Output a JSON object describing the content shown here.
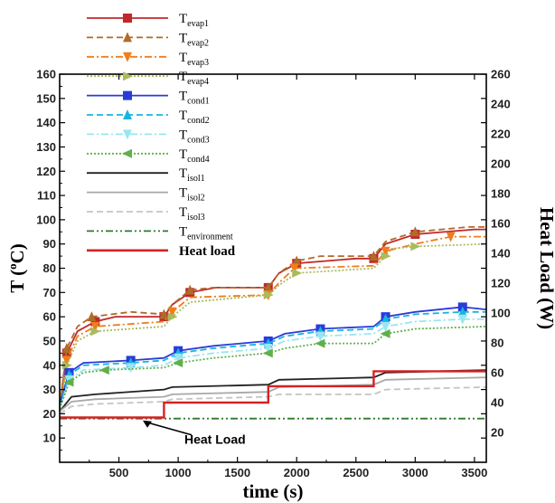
{
  "chart_data": {
    "type": "line",
    "xlabel": "time (s)",
    "ylabel": "T (°C)",
    "ylabel_sup": "o",
    "y2label": "Heat Load (W)",
    "xlim": [
      0,
      3600
    ],
    "ylim": [
      0,
      160
    ],
    "y2lim": [
      0,
      260
    ],
    "xticks": [
      500,
      1000,
      1500,
      2000,
      2500,
      3000,
      3500
    ],
    "yticks": [
      10,
      20,
      30,
      40,
      50,
      60,
      70,
      80,
      90,
      100,
      110,
      120,
      130,
      140,
      150,
      160
    ],
    "y2ticks": [
      20,
      40,
      60,
      80,
      100,
      120,
      140,
      160,
      180,
      200,
      220,
      240,
      260
    ],
    "annotation": {
      "text": "Heat Load",
      "x": 900,
      "y": 18
    },
    "series": [
      {
        "name": "T",
        "sub": "evap1",
        "color": "#c0282a",
        "dash": "",
        "marker": "square",
        "x": [
          0,
          60,
          150,
          300,
          470,
          880,
          950,
          1100,
          1320,
          1760,
          1850,
          2000,
          2500,
          2650,
          2750,
          3000,
          3500,
          3600
        ],
        "y": [
          22,
          45,
          54,
          58,
          60,
          60,
          65,
          70,
          72,
          72,
          78,
          82,
          84,
          84,
          90,
          94,
          96,
          96
        ]
      },
      {
        "name": "T",
        "sub": "evap2",
        "color": "#b06a2a",
        "dash": "7,4",
        "marker": "triangle-up",
        "x": [
          0,
          60,
          150,
          270,
          600,
          880,
          950,
          1100,
          1300,
          1760,
          1850,
          2000,
          2200,
          2650,
          2750,
          3000,
          3450,
          3600
        ],
        "y": [
          23,
          47,
          56,
          60,
          62,
          61,
          65,
          71,
          72,
          72,
          78,
          83,
          85,
          85,
          91,
          95,
          97,
          97
        ]
      },
      {
        "name": "T",
        "sub": "evap3",
        "color": "#f07d1c",
        "dash": "8,3,2,3",
        "marker": "triangle-down",
        "x": [
          0,
          60,
          150,
          300,
          880,
          950,
          1100,
          1760,
          1850,
          1980,
          2650,
          2750,
          3000,
          3300,
          3600
        ],
        "y": [
          21,
          42,
          52,
          56,
          58,
          62,
          68,
          69,
          74,
          80,
          81,
          87,
          90,
          93,
          93
        ]
      },
      {
        "name": "T",
        "sub": "evap4",
        "color": "#a9bb5c",
        "dash": "2,2",
        "marker": "triangle-right",
        "x": [
          0,
          60,
          150,
          300,
          880,
          950,
          1100,
          1760,
          1850,
          2000,
          2650,
          2750,
          2800,
          3000,
          3600
        ],
        "y": [
          21,
          40,
          50,
          54,
          56,
          60,
          66,
          69,
          73,
          78,
          80,
          85,
          88,
          89,
          90
        ]
      },
      {
        "name": "T",
        "sub": "cond1",
        "color": "#2a3bd8",
        "dash": "",
        "marker": "square",
        "x": [
          0,
          80,
          200,
          600,
          880,
          1000,
          1300,
          1760,
          1900,
          2200,
          2650,
          2750,
          3000,
          3400,
          3600
        ],
        "y": [
          24,
          37,
          41,
          42,
          43,
          46,
          48,
          50,
          53,
          55,
          56,
          60,
          62,
          64,
          63
        ]
      },
      {
        "name": "T",
        "sub": "cond2",
        "color": "#18b4e0",
        "dash": "7,4",
        "marker": "triangle-up",
        "x": [
          0,
          80,
          200,
          600,
          880,
          1000,
          1300,
          1760,
          1900,
          2200,
          2650,
          2750,
          3000,
          3400,
          3600
        ],
        "y": [
          23,
          36,
          40,
          41,
          42,
          45,
          47,
          49,
          52,
          54,
          55,
          59,
          61,
          62,
          62
        ]
      },
      {
        "name": "T",
        "sub": "cond3",
        "color": "#98e6f2",
        "dash": "8,3,2,3",
        "marker": "triangle-down",
        "x": [
          0,
          80,
          200,
          600,
          880,
          1000,
          1300,
          1760,
          1900,
          2200,
          2650,
          2750,
          3000,
          3400,
          3600
        ],
        "y": [
          22,
          34,
          38,
          39,
          40,
          43,
          45,
          47,
          50,
          52,
          53,
          56,
          58,
          59,
          59
        ]
      },
      {
        "name": "T",
        "sub": "cond4",
        "color": "#5fb04a",
        "dash": "2,2",
        "marker": "triangle-left",
        "x": [
          0,
          80,
          200,
          380,
          880,
          1000,
          1300,
          1760,
          1900,
          2200,
          2650,
          2750,
          3000,
          3600
        ],
        "y": [
          22,
          33,
          37,
          38,
          39,
          41,
          43,
          45,
          47,
          49,
          49,
          53,
          55,
          56
        ]
      },
      {
        "name": "T",
        "sub": "isol1",
        "color": "#222222",
        "dash": "",
        "marker": "",
        "x": [
          0,
          100,
          300,
          880,
          950,
          1760,
          1850,
          2650,
          2750,
          3600
        ],
        "y": [
          21,
          27,
          28,
          30,
          31,
          32,
          34,
          35,
          37,
          38
        ]
      },
      {
        "name": "T",
        "sub": "isol2",
        "color": "#a8a8a8",
        "dash": "",
        "marker": "",
        "x": [
          0,
          100,
          300,
          880,
          950,
          1760,
          1850,
          2650,
          2750,
          3600
        ],
        "y": [
          21,
          25,
          26,
          27,
          28,
          29,
          31,
          32,
          34,
          35
        ]
      },
      {
        "name": "T",
        "sub": "isol3",
        "color": "#c4c4c4",
        "dash": "7,4",
        "marker": "",
        "x": [
          0,
          100,
          300,
          880,
          950,
          1760,
          1850,
          2650,
          2750,
          3600
        ],
        "y": [
          20,
          23,
          24,
          25,
          26,
          27,
          28,
          28,
          30,
          31
        ]
      },
      {
        "name": "T",
        "sub": "environment",
        "color": "#2d7a2d",
        "dash": "8,3,2,3,2,3",
        "marker": "",
        "x": [
          0,
          3600
        ],
        "y": [
          18,
          18
        ]
      },
      {
        "name": "Heat load",
        "sub": "",
        "color": "#d42222",
        "dash": "",
        "marker": "",
        "axis": "right",
        "step": true,
        "x": [
          0,
          880,
          880,
          1760,
          1760,
          2650,
          2650,
          3600
        ],
        "y": [
          30,
          30,
          40,
          40,
          51,
          51,
          61,
          61
        ]
      }
    ]
  }
}
